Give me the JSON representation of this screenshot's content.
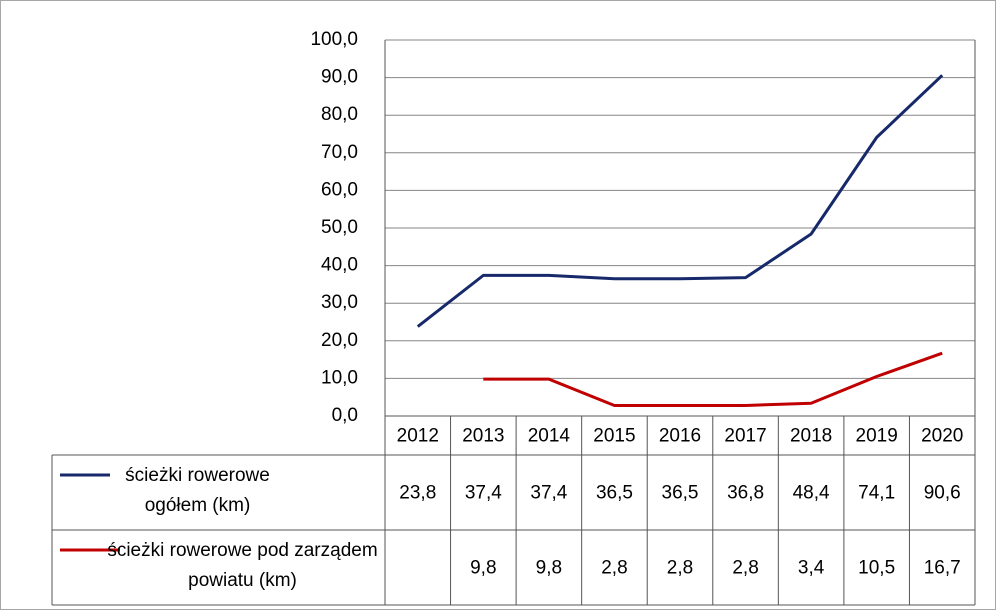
{
  "chart_data": {
    "type": "line",
    "categories": [
      "2012",
      "2013",
      "2014",
      "2015",
      "2016",
      "2017",
      "2018",
      "2019",
      "2020"
    ],
    "series": [
      {
        "name": "ścieżki rowerowe ogółem (km)",
        "color": "#17296b",
        "values": [
          23.8,
          37.4,
          37.4,
          36.5,
          36.5,
          36.8,
          48.4,
          74.1,
          90.6
        ],
        "value_labels": [
          "23,8",
          "37,4",
          "37,4",
          "36,5",
          "36,5",
          "36,8",
          "48,4",
          "74,1",
          "90,6"
        ]
      },
      {
        "name": "ścieżki rowerowe pod zarządem powiatu (km)",
        "color": "#c00000",
        "values": [
          null,
          9.8,
          9.8,
          2.8,
          2.8,
          2.8,
          3.4,
          10.5,
          16.7
        ],
        "value_labels": [
          null,
          "9,8",
          "9,8",
          "2,8",
          "2,8",
          "2,8",
          "3,4",
          "10,5",
          "16,7"
        ]
      }
    ],
    "ylim": [
      0,
      100
    ],
    "yticks": [
      {
        "value": 0,
        "label": "0,0"
      },
      {
        "value": 10,
        "label": "10,0"
      },
      {
        "value": 20,
        "label": "20,0"
      },
      {
        "value": 30,
        "label": "30,0"
      },
      {
        "value": 40,
        "label": "40,0"
      },
      {
        "value": 50,
        "label": "50,0"
      },
      {
        "value": 60,
        "label": "60,0"
      },
      {
        "value": 70,
        "label": "70,0"
      },
      {
        "value": 80,
        "label": "80,0"
      },
      {
        "value": 90,
        "label": "90,0"
      },
      {
        "value": 100,
        "label": "100,0"
      }
    ],
    "grid": true
  }
}
